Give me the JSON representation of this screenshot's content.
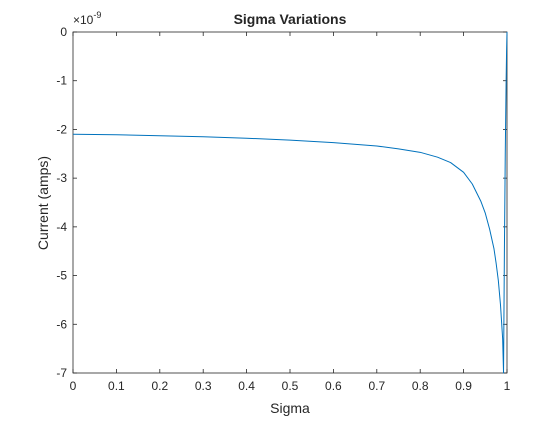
{
  "chart_data": {
    "type": "line",
    "title": "Sigma Variations",
    "xlabel": "Sigma",
    "ylabel": "Current (amps)",
    "exponent_label": "×10",
    "exponent_power": "-9",
    "xlim": [
      0,
      1
    ],
    "ylim": [
      -7,
      0
    ],
    "xticks": [
      0,
      0.1,
      0.2,
      0.3,
      0.4,
      0.5,
      0.6,
      0.7,
      0.8,
      0.9,
      1
    ],
    "xtick_labels": [
      "0",
      "0.1",
      "0.2",
      "0.3",
      "0.4",
      "0.5",
      "0.6",
      "0.7",
      "0.8",
      "0.9",
      "1"
    ],
    "yticks": [
      0,
      -1,
      -2,
      -3,
      -4,
      -5,
      -6,
      -7
    ],
    "ytick_labels": [
      "0",
      "-1",
      "-2",
      "-3",
      "-4",
      "-5",
      "-6",
      "-7"
    ],
    "grid": false,
    "line_color": "#0072BD",
    "series": [
      {
        "x": [
          0.0,
          0.1,
          0.2,
          0.3,
          0.4,
          0.5,
          0.6,
          0.7,
          0.75,
          0.8,
          0.84,
          0.87,
          0.9,
          0.92,
          0.94,
          0.95,
          0.96,
          0.97,
          0.975,
          0.98,
          0.985,
          0.99,
          0.992,
          0.994,
          0.996,
          0.998,
          0.999,
          1.0
        ],
        "y": [
          -2.1,
          -2.11,
          -2.13,
          -2.15,
          -2.18,
          -2.22,
          -2.27,
          -2.34,
          -2.4,
          -2.47,
          -2.57,
          -2.68,
          -2.88,
          -3.12,
          -3.48,
          -3.72,
          -4.05,
          -4.45,
          -4.75,
          -5.1,
          -5.6,
          -6.3,
          -7.0,
          -4.5,
          -2.5,
          -1.0,
          -0.4,
          0.0
        ]
      }
    ]
  }
}
